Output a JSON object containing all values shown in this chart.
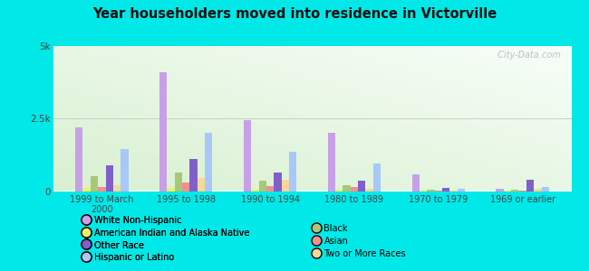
{
  "title": "Year householders moved into residence in Victorville",
  "categories": [
    "1999 to March\n2000",
    "1995 to 1998",
    "1990 to 1994",
    "1980 to 1989",
    "1970 to 1979",
    "1969 or earlier"
  ],
  "series_order": [
    "White Non-Hispanic",
    "American Indian and Alaska Native",
    "Black",
    "Asian",
    "Other Race",
    "Two or More Races",
    "Hispanic or Latino"
  ],
  "series": {
    "White Non-Hispanic": [
      2200,
      4100,
      2450,
      2000,
      580,
      80
    ],
    "American Indian and Alaska Native": [
      100,
      100,
      60,
      50,
      20,
      20
    ],
    "Black": [
      500,
      650,
      350,
      200,
      50,
      40
    ],
    "Asian": [
      130,
      310,
      180,
      130,
      20,
      30
    ],
    "Other Race": [
      900,
      1100,
      650,
      350,
      100,
      400
    ],
    "Two or More Races": [
      200,
      450,
      380,
      80,
      30,
      80
    ],
    "Hispanic or Latino": [
      1450,
      2000,
      1350,
      950,
      80,
      130
    ]
  },
  "colors": {
    "White Non-Hispanic": "#c8a0e8",
    "American Indian and Alaska Native": "#f0f060",
    "Black": "#a8c878",
    "Asian": "#f09090",
    "Other Race": "#8060c8",
    "Two or More Races": "#f8d898",
    "Hispanic or Latino": "#a8c8f8"
  },
  "legend_left": [
    "White Non-Hispanic",
    "American Indian and Alaska Native",
    "Other Race",
    "Hispanic or Latino"
  ],
  "legend_right": [
    "Black",
    "Asian",
    "Two or More Races"
  ],
  "ylim": [
    0,
    5000
  ],
  "yticks": [
    0,
    2500,
    5000
  ],
  "ytick_labels": [
    "0",
    "2.5k",
    "5k"
  ],
  "outer_bg": "#00e8e8",
  "watermark": "  City-Data.com"
}
